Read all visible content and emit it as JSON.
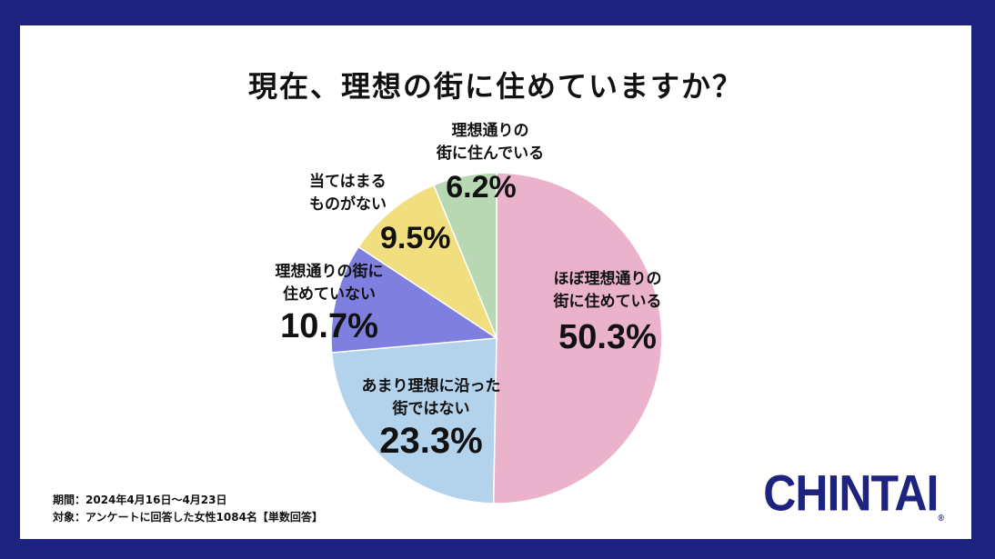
{
  "title": "現在、理想の街に住めていますか？",
  "chart_data": {
    "type": "pie",
    "title": "現在、理想の街に住めていますか？",
    "slices": [
      {
        "label_line1": "ほぼ理想通りの",
        "label_line2": "街に住めている",
        "value": 50.3,
        "value_text": "50.3%",
        "color": "#ebb3cb"
      },
      {
        "label_line1": "あまり理想に沿った",
        "label_line2": "街ではない",
        "value": 23.3,
        "value_text": "23.3%",
        "color": "#b3d2ec"
      },
      {
        "label_line1": "理想通りの街に",
        "label_line2": "住めていない",
        "value": 10.7,
        "value_text": "10.7%",
        "color": "#7f7fdf"
      },
      {
        "label_line1": "当てはまる",
        "label_line2": "ものがない",
        "value": 9.5,
        "value_text": "9.5%",
        "color": "#f0de7f"
      },
      {
        "label_line1": "理想通りの",
        "label_line2": "街に住んでいる",
        "value": 6.2,
        "value_text": "6.2%",
        "color": "#b7d8b3"
      }
    ]
  },
  "footnote": {
    "period": "期間：2024年4月16日～4月23日",
    "target": "対象：アンケートに回答した女性1084名【単数回答】"
  },
  "logo": {
    "text": "CHINTAI",
    "registered": "®"
  },
  "colors": {
    "frame": "#1f2380",
    "background": "#ffffff"
  }
}
